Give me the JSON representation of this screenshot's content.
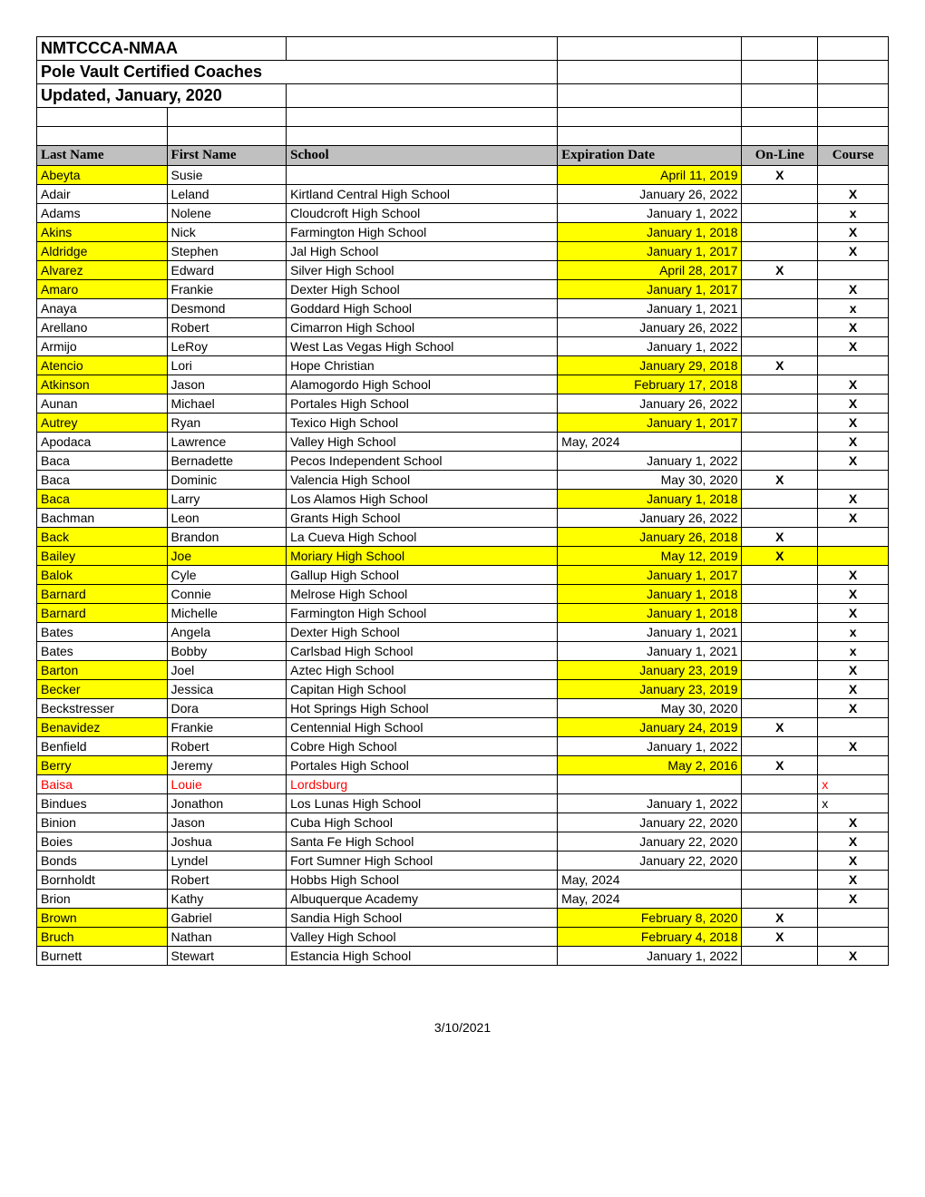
{
  "title1": "NMTCCCA-NMAA",
  "title2": "Pole Vault Certified Coaches",
  "title3": "Updated, January, 2020",
  "headers": {
    "last": "Last Name",
    "first": "First Name",
    "school": "School",
    "exp": "Expiration Date",
    "online": "On-Line",
    "course": "Course"
  },
  "footer": "3/10/2021",
  "colors": {
    "highlight": "#ffff00",
    "headerbg": "#c0c0c0",
    "red": "#ff0000"
  },
  "rows": [
    {
      "last": "Abeyta",
      "first": "Susie",
      "school": "",
      "exp": "April 11, 2019",
      "online": "X",
      "course": "",
      "lastHL": true,
      "expHL": true
    },
    {
      "last": "Adair",
      "first": "Leland",
      "school": "Kirtland Central High School",
      "exp": "January 26, 2022",
      "online": "",
      "course": "X"
    },
    {
      "last": "Adams",
      "first": "Nolene",
      "school": "Cloudcroft High School",
      "exp": "January 1, 2022",
      "online": "",
      "course": "x"
    },
    {
      "last": "Akins",
      "first": "Nick",
      "school": "Farmington High School",
      "exp": "January 1, 2018",
      "online": "",
      "course": "X",
      "lastHL": true,
      "expHL": true
    },
    {
      "last": "Aldridge",
      "first": "Stephen",
      "school": "Jal High School",
      "exp": "January 1, 2017",
      "online": "",
      "course": "X",
      "lastHL": true,
      "expHL": true
    },
    {
      "last": "Alvarez",
      "first": "Edward",
      "school": "Silver High School",
      "exp": "April 28, 2017",
      "online": "X",
      "course": "",
      "lastHL": true,
      "expHL": true
    },
    {
      "last": "Amaro",
      "first": "Frankie",
      "school": "Dexter High School",
      "exp": "January 1, 2017",
      "online": "",
      "course": "X",
      "lastHL": true,
      "expHL": true
    },
    {
      "last": "Anaya",
      "first": "Desmond",
      "school": "Goddard High School",
      "exp": "January 1, 2021",
      "online": "",
      "course": "x"
    },
    {
      "last": "Arellano",
      "first": "Robert",
      "school": "Cimarron High School",
      "exp": "January 26, 2022",
      "online": "",
      "course": "X"
    },
    {
      "last": "Armijo",
      "first": "LeRoy",
      "school": "West Las Vegas High School",
      "exp": "January 1, 2022",
      "online": "",
      "course": "X"
    },
    {
      "last": "Atencio",
      "first": "Lori",
      "school": "Hope Christian",
      "exp": "January 29, 2018",
      "online": "X",
      "course": "",
      "lastHL": true,
      "expHL": true
    },
    {
      "last": "Atkinson",
      "first": "Jason",
      "school": "Alamogordo High School",
      "exp": "February 17, 2018",
      "online": "",
      "course": "X",
      "lastHL": true,
      "expHL": true
    },
    {
      "last": "Aunan",
      "first": "Michael",
      "school": "Portales High School",
      "exp": "January 26, 2022",
      "online": "",
      "course": "X"
    },
    {
      "last": "Autrey",
      "first": "Ryan",
      "school": "Texico High School",
      "exp": "January 1, 2017",
      "online": "",
      "course": "X",
      "lastHL": true,
      "expHL": true
    },
    {
      "last": "Apodaca",
      "first": "Lawrence",
      "school": "Valley High School",
      "exp": "May, 2024",
      "online": "",
      "course": "X",
      "expLeft": true
    },
    {
      "last": "Baca",
      "first": "Bernadette",
      "school": "Pecos Independent School",
      "exp": "January 1, 2022",
      "online": "",
      "course": "X"
    },
    {
      "last": "Baca",
      "first": "Dominic",
      "school": "Valencia High School",
      "exp": "May 30, 2020",
      "online": "X",
      "course": ""
    },
    {
      "last": "Baca",
      "first": "Larry",
      "school": "Los Alamos High School",
      "exp": "January 1, 2018",
      "online": "",
      "course": "X",
      "lastHL": true,
      "expHL": true
    },
    {
      "last": "Bachman",
      "first": "Leon",
      "school": "Grants High School",
      "exp": "January 26, 2022",
      "online": "",
      "course": "X"
    },
    {
      "last": "Back",
      "first": "Brandon",
      "school": "La Cueva High School",
      "exp": "January 26, 2018",
      "online": "X",
      "course": "",
      "lastHL": true,
      "expHL": true
    },
    {
      "last": "Bailey",
      "first": "Joe",
      "school": "Moriary High School",
      "exp": "May 12, 2019",
      "online": "X",
      "course": "",
      "fullHL": true
    },
    {
      "last": "Balok",
      "first": "Cyle",
      "school": "Gallup High School",
      "exp": "January 1, 2017",
      "online": "",
      "course": "X",
      "lastHL": true,
      "expHL": true
    },
    {
      "last": "Barnard",
      "first": "Connie",
      "school": "Melrose High School",
      "exp": "January 1, 2018",
      "online": "",
      "course": "X",
      "lastHL": true,
      "expHL": true
    },
    {
      "last": "Barnard",
      "first": "Michelle",
      "school": "Farmington High School",
      "exp": "January 1, 2018",
      "online": "",
      "course": "X",
      "lastHL": true,
      "expHL": true
    },
    {
      "last": "Bates",
      "first": "Angela",
      "school": "Dexter High School",
      "exp": "January 1, 2021",
      "online": "",
      "course": "x"
    },
    {
      "last": "Bates",
      "first": "Bobby",
      "school": "Carlsbad High School",
      "exp": "January 1, 2021",
      "online": "",
      "course": "x"
    },
    {
      "last": "Barton",
      "first": "Joel",
      "school": "Aztec High School",
      "exp": "January 23, 2019",
      "online": "",
      "course": "X",
      "lastHL": true,
      "expHL": true
    },
    {
      "last": "Becker",
      "first": "Jessica",
      "school": "Capitan High School",
      "exp": "January 23, 2019",
      "online": "",
      "course": "X",
      "lastHL": true,
      "expHL": true
    },
    {
      "last": "Beckstresser",
      "first": "Dora",
      "school": "Hot Springs High School",
      "exp": "May 30, 2020",
      "online": "",
      "course": "X"
    },
    {
      "last": "Benavidez",
      "first": "Frankie",
      "school": "Centennial High School",
      "exp": "January 24, 2019",
      "online": "X",
      "course": "",
      "lastHL": true,
      "expHL": true
    },
    {
      "last": "Benfield",
      "first": "Robert",
      "school": "Cobre High School",
      "exp": "January 1, 2022",
      "online": "",
      "course": "X"
    },
    {
      "last": "Berry",
      "first": "Jeremy",
      "school": "Portales High School",
      "exp": "May 2, 2016",
      "online": "X",
      "course": "",
      "lastHL": true,
      "expHL": true
    },
    {
      "last": "Baisa",
      "first": "Louie",
      "school": "Lordsburg",
      "exp": "",
      "online": "",
      "course": "x",
      "redRow": true,
      "courseLeft": true
    },
    {
      "last": "Bindues",
      "first": "Jonathon",
      "school": "Los Lunas High School",
      "exp": "January 1, 2022",
      "online": "",
      "course": "x",
      "courseLeft": true
    },
    {
      "last": "Binion",
      "first": "Jason",
      "school": "Cuba High School",
      "exp": "January 22, 2020",
      "online": "",
      "course": "X"
    },
    {
      "last": "Boies",
      "first": "Joshua",
      "school": "Santa Fe High School",
      "exp": "January 22, 2020",
      "online": "",
      "course": "X"
    },
    {
      "last": "Bonds",
      "first": "Lyndel",
      "school": "Fort Sumner High School",
      "exp": "January 22, 2020",
      "online": "",
      "course": "X"
    },
    {
      "last": "Bornholdt",
      "first": "Robert",
      "school": "Hobbs High School",
      "exp": "May, 2024",
      "online": "",
      "course": "X",
      "expLeft": true
    },
    {
      "last": "Brion",
      "first": "Kathy",
      "school": "Albuquerque Academy",
      "exp": "May, 2024",
      "online": "",
      "course": "X",
      "expLeft": true
    },
    {
      "last": "Brown",
      "first": "Gabriel",
      "school": "Sandia High School",
      "exp": "February 8, 2020",
      "online": "X",
      "course": "",
      "lastHL": true,
      "expHL": true
    },
    {
      "last": "Bruch",
      "first": "Nathan",
      "school": "Valley High School",
      "exp": "February 4, 2018",
      "online": "X",
      "course": "",
      "lastHL": true,
      "expHL": true
    },
    {
      "last": "Burnett",
      "first": "Stewart",
      "school": "Estancia High School",
      "exp": "January 1, 2022",
      "online": "",
      "course": "X"
    }
  ]
}
